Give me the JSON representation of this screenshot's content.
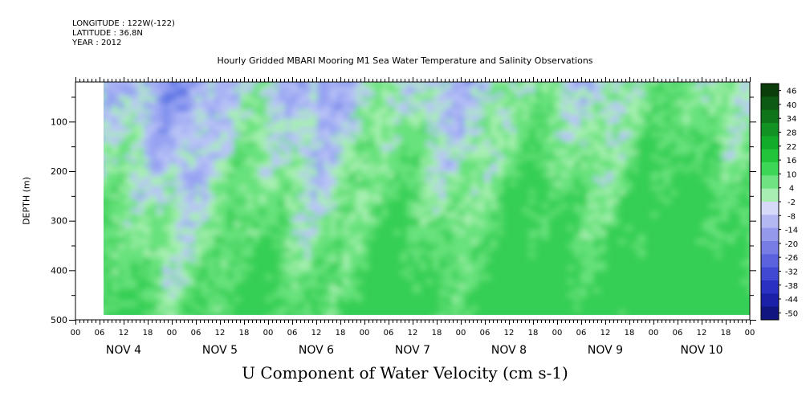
{
  "header": {
    "longitude": "LONGITUDE : 122W(-122)",
    "latitude": "LATITUDE : 36.8N",
    "year": "YEAR : 2012"
  },
  "chart_data": {
    "type": "heatmap",
    "title": "Hourly Gridded MBARI Mooring M1 Sea Water Temperature and Salinity Observations",
    "xlabel": "U Component of Water Velocity (cm s-1)",
    "ylabel": "DEPTH (m)",
    "yaxis": {
      "ticks": [
        100,
        200,
        300,
        400,
        500
      ],
      "range": [
        20,
        500
      ],
      "inverted": true,
      "data_range": [
        20,
        490
      ]
    },
    "xaxis": {
      "hour_ticks": [
        "00",
        "06",
        "12",
        "18",
        "00",
        "06",
        "12",
        "18",
        "00",
        "06",
        "12",
        "18",
        "00",
        "06",
        "12",
        "18",
        "00",
        "06",
        "12",
        "18",
        "00",
        "06",
        "12",
        "18",
        "00",
        "06",
        "12",
        "18",
        "00"
      ],
      "day_labels": [
        "NOV 4",
        "NOV 5",
        "NOV 6",
        "NOV 7",
        "NOV 8",
        "NOV 9",
        "NOV 10"
      ],
      "range_hours": [
        0,
        168
      ],
      "data_start_hour": 7,
      "data_end_hour": 168
    },
    "colorbar": {
      "labels": [
        "46",
        "40",
        "34",
        "28",
        "22",
        "16",
        "10",
        "4",
        "-2",
        "-8",
        "-14",
        "-20",
        "-26",
        "-32",
        "-38",
        "-44",
        "-50"
      ],
      "colors": [
        "#0b3d0b",
        "#0d5a12",
        "#0f751a",
        "#119222",
        "#13ab2a",
        "#22c43a",
        "#3dd656",
        "#6fe382",
        "#a8eeb2",
        "#d6d9f7",
        "#b3b7f2",
        "#9599ec",
        "#777de5",
        "#5a62dd",
        "#4148d2",
        "#2a31c2",
        "#1a20a8",
        "#10157f"
      ],
      "ticks": [
        46,
        40,
        34,
        28,
        22,
        16,
        10,
        4,
        -2,
        -8,
        -14,
        -20,
        -26,
        -32,
        -38,
        -44,
        -50
      ]
    },
    "palette_regions": {
      "blue": "#96a3f2",
      "light_blue": "#b8c3f6",
      "green": "#67e27c",
      "light_green": "#a6efb0",
      "dark_blue": "#5d75e6",
      "dark_green": "#34cf55"
    }
  }
}
